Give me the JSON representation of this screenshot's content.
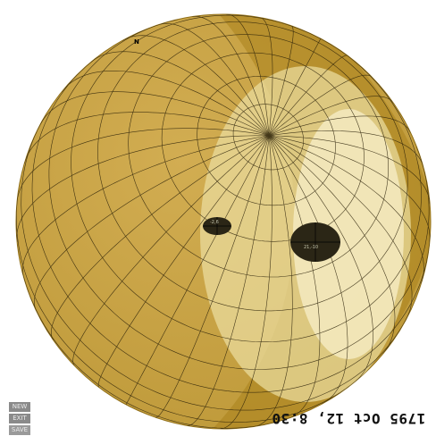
{
  "globe": {
    "north_label": "N",
    "markers": [
      {
        "name": "small-marker",
        "label": "-2,6"
      },
      {
        "name": "large-marker",
        "label": "21,-10"
      }
    ]
  },
  "date_label": "1795 Oct 12, 8:30",
  "menu": {
    "new_label": "NEW",
    "exit_label": "EXIT",
    "save_label": "SAVE"
  },
  "colors": {
    "globe_base": "#caa445",
    "globe_dark": "#a9811b",
    "lit_region": "#f2e7b8",
    "grid": "#2a2008"
  }
}
